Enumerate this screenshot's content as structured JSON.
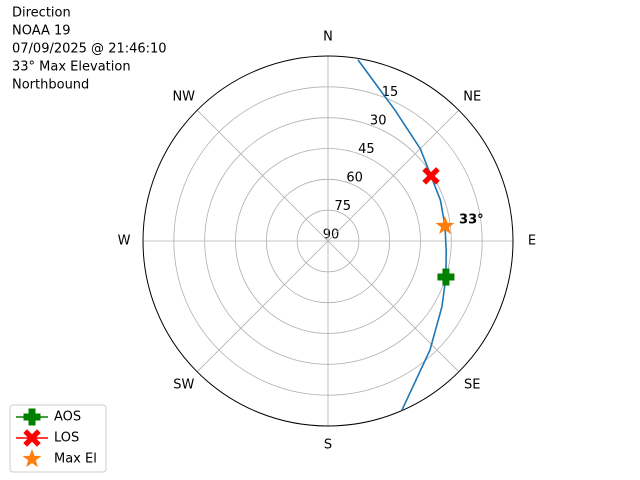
{
  "chart_data": {
    "type": "polar",
    "title_lines": [
      "Direction",
      "NOAA 19",
      "07/09/2025 @ 21:46:10",
      "33° Max Elevation",
      "Northbound"
    ],
    "thetaticks": [
      {
        "value": 0,
        "label": "N"
      },
      {
        "value": 45,
        "label": "NE"
      },
      {
        "value": 90,
        "label": "E"
      },
      {
        "value": 135,
        "label": "SE"
      },
      {
        "value": 180,
        "label": "S"
      },
      {
        "value": 225,
        "label": "SW"
      },
      {
        "value": 270,
        "label": "W"
      },
      {
        "value": 315,
        "label": "NW"
      }
    ],
    "rlim": [
      90,
      0
    ],
    "rticks": [
      15,
      30,
      45,
      60,
      75,
      90
    ],
    "grid": true,
    "track": {
      "color": "#1f77b4",
      "azimuth": [
        156.4,
        136.9,
        120,
        107,
        95,
        82.7,
        70,
        57.7,
        45,
        27.1,
        9.4
      ],
      "elevation": [
        0.2,
        17.4,
        26,
        30,
        32.3,
        32.6,
        31.8,
        30.7,
        26.5,
        18.5,
        0.7
      ]
    },
    "series": [
      {
        "name": "AOS",
        "color": "#008000",
        "marker": "plus",
        "line": true,
        "azimuth": [
          107
        ],
        "elevation": [
          30
        ]
      },
      {
        "name": "LOS",
        "color": "#ff0000",
        "marker": "x",
        "line": true,
        "azimuth": [
          57.7
        ],
        "elevation": [
          30.7
        ]
      },
      {
        "name": "Max El",
        "color": "#ff7f0e",
        "marker": "star",
        "line": false,
        "azimuth": [
          82.7
        ],
        "elevation": [
          32.6
        ]
      }
    ],
    "annotation": "33°",
    "legend": "lower left"
  }
}
